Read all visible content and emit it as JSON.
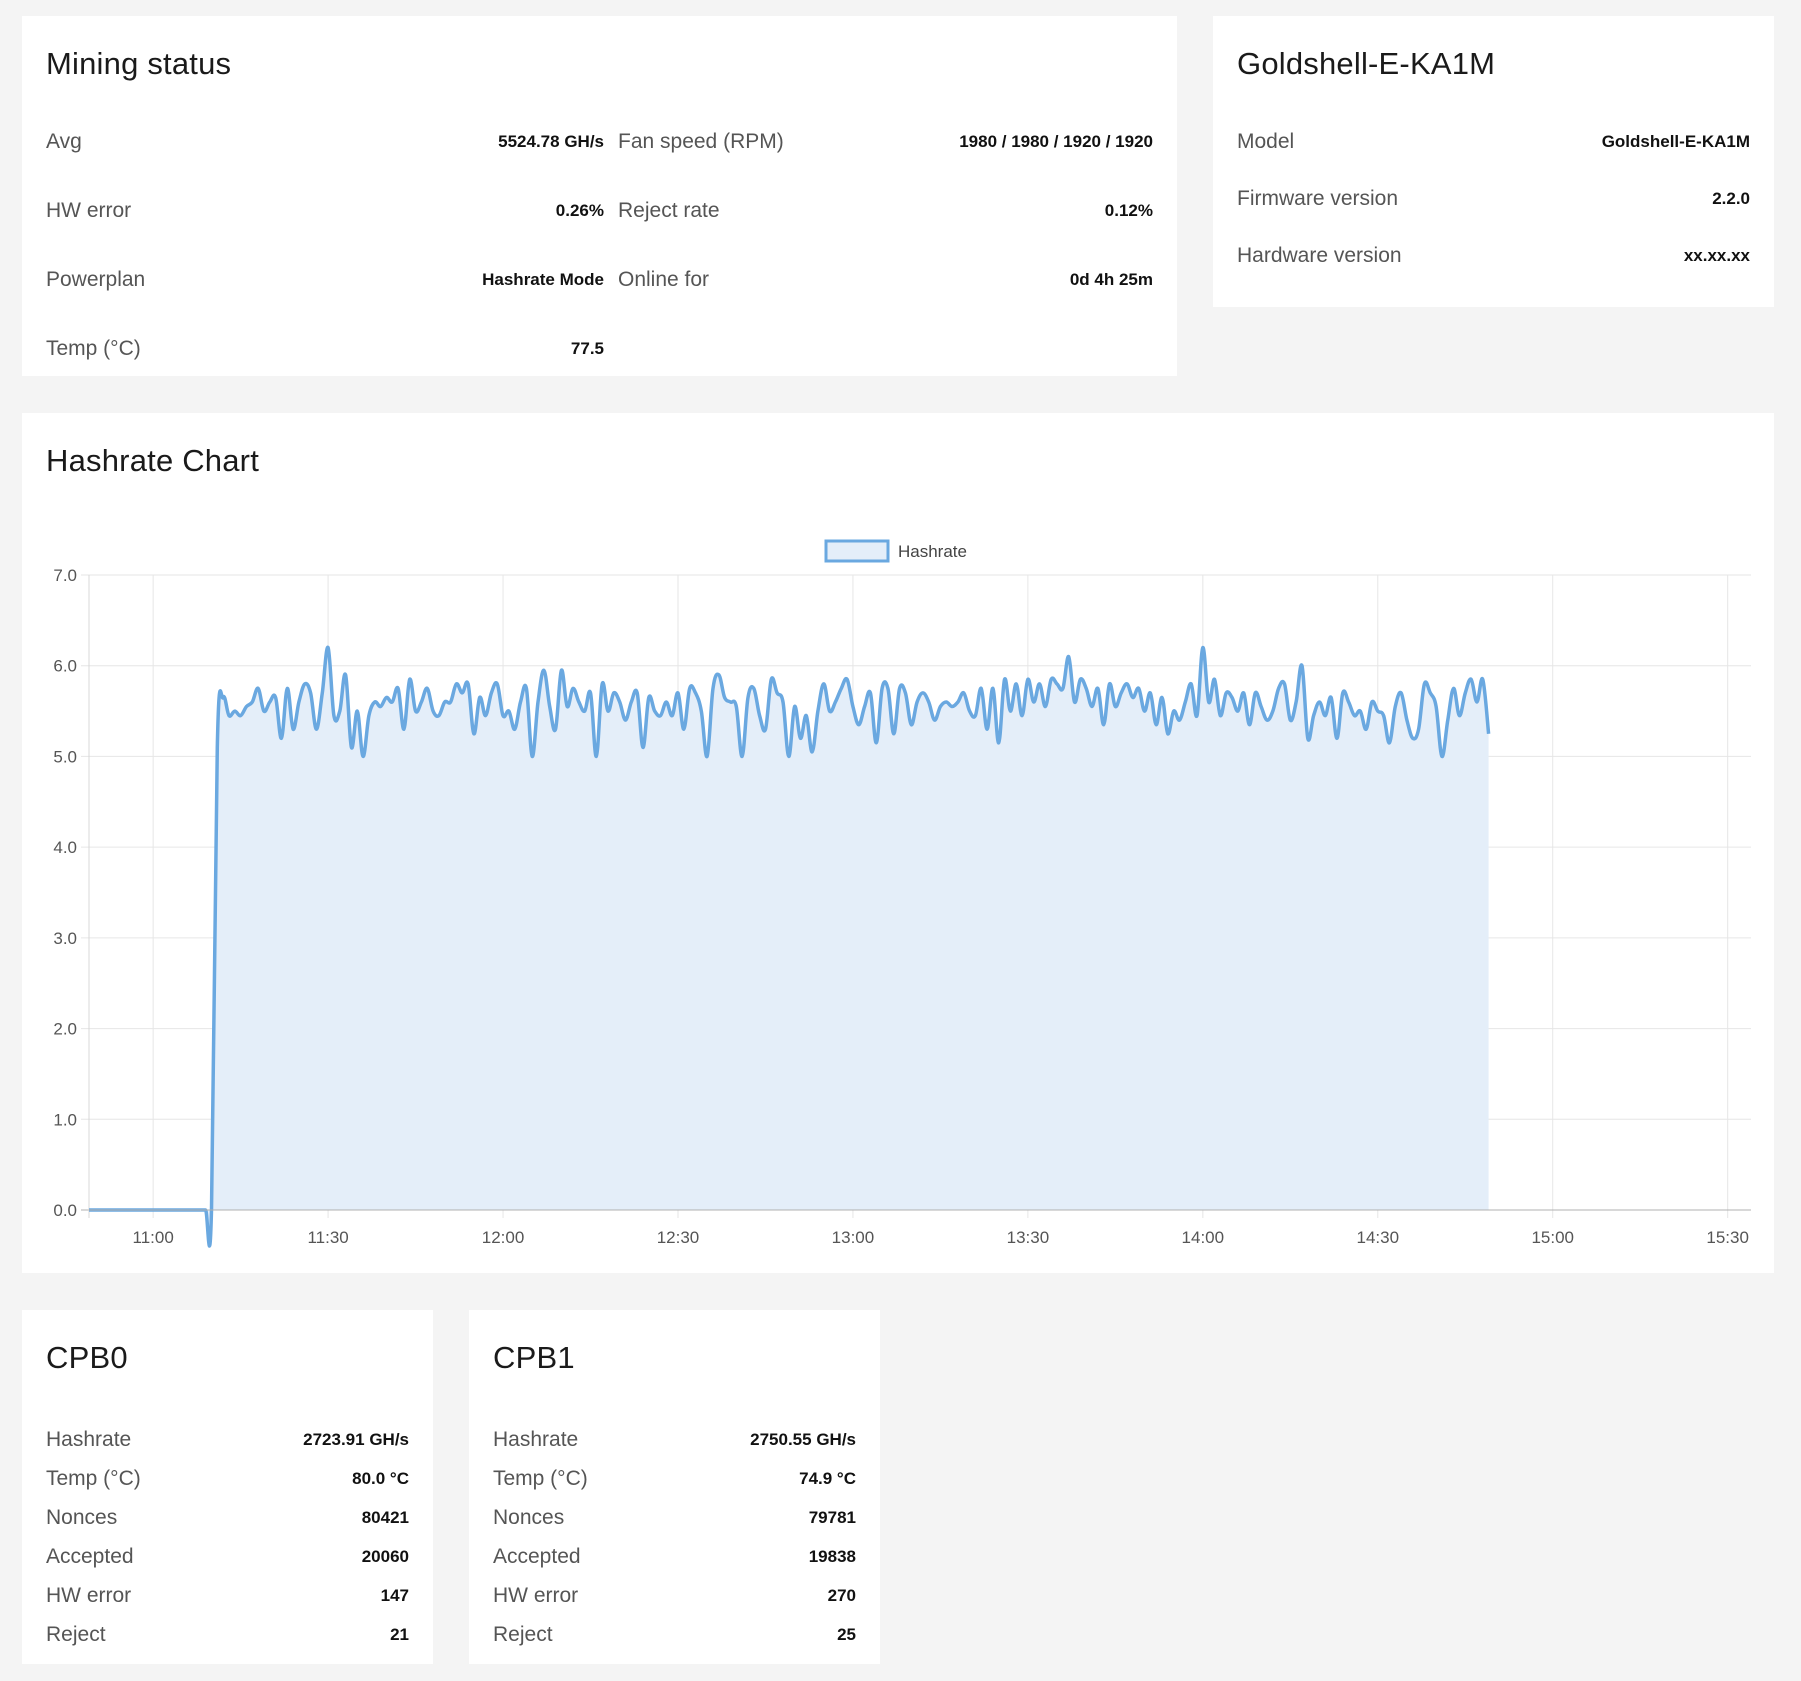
{
  "mining_status": {
    "title": "Mining status",
    "left_rows": [
      {
        "label": "Avg",
        "value": "5524.78 GH/s"
      },
      {
        "label": "HW error",
        "value": "0.26%"
      },
      {
        "label": "Powerplan",
        "value": "Hashrate Mode"
      },
      {
        "label": "Temp (°C)",
        "value": "77.5"
      }
    ],
    "right_rows": [
      {
        "label": "Fan speed (RPM)",
        "value": "1980 / 1980 / 1920 / 1920"
      },
      {
        "label": "Reject rate",
        "value": "0.12%"
      },
      {
        "label": "Online for",
        "value": "0d 4h 25m"
      }
    ]
  },
  "device": {
    "title": "Goldshell-E-KA1M",
    "rows": [
      {
        "label": "Model",
        "value": "Goldshell-E-KA1M"
      },
      {
        "label": "Firmware version",
        "value": "2.2.0"
      },
      {
        "label": "Hardware version",
        "value": "xx.xx.xx"
      }
    ]
  },
  "hashrate_chart": {
    "title": "Hashrate Chart"
  },
  "chart_data": {
    "type": "area",
    "title": "",
    "xlabel": "",
    "ylabel": "",
    "ylim": [
      0,
      7
    ],
    "y_ticks": [
      "0.0",
      "1.0",
      "2.0",
      "3.0",
      "4.0",
      "5.0",
      "6.0",
      "7.0"
    ],
    "x_ticks": [
      "11:00",
      "11:30",
      "12:00",
      "12:30",
      "13:00",
      "13:30",
      "14:00",
      "14:30",
      "15:00",
      "15:30"
    ],
    "x_tick_minutes": [
      660,
      690,
      720,
      750,
      780,
      810,
      840,
      870,
      900,
      930
    ],
    "x_range_minutes": [
      649,
      934
    ],
    "grid": true,
    "legend_position": "top-center",
    "series": [
      {
        "name": "Hashrate",
        "color": "#6aa8e0",
        "fill": "#e4eef9",
        "x_start_minutes": 649,
        "x_step_minutes": 1,
        "values": [
          0,
          0,
          0,
          0,
          0,
          0,
          0,
          0,
          0,
          0,
          0,
          0,
          0,
          0,
          0,
          0,
          0,
          0,
          0,
          0,
          0,
          0,
          5.1,
          5.65,
          5.45,
          5.5,
          5.45,
          5.55,
          5.6,
          5.75,
          5.5,
          5.6,
          5.65,
          5.2,
          5.75,
          5.3,
          5.6,
          5.8,
          5.7,
          5.3,
          5.7,
          6.2,
          5.45,
          5.5,
          5.9,
          5.1,
          5.5,
          5.0,
          5.45,
          5.6,
          5.55,
          5.65,
          5.6,
          5.75,
          5.3,
          5.85,
          5.5,
          5.6,
          5.75,
          5.5,
          5.45,
          5.6,
          5.6,
          5.8,
          5.7,
          5.8,
          5.25,
          5.65,
          5.45,
          5.7,
          5.8,
          5.45,
          5.5,
          5.3,
          5.6,
          5.75,
          5.0,
          5.6,
          5.95,
          5.55,
          5.3,
          5.95,
          5.55,
          5.75,
          5.6,
          5.5,
          5.7,
          5.0,
          5.8,
          5.5,
          5.7,
          5.6,
          5.4,
          5.6,
          5.7,
          5.1,
          5.65,
          5.5,
          5.45,
          5.6,
          5.45,
          5.7,
          5.3,
          5.75,
          5.7,
          5.5,
          5.0,
          5.75,
          5.9,
          5.65,
          5.6,
          5.55,
          5.0,
          5.65,
          5.75,
          5.45,
          5.3,
          5.85,
          5.7,
          5.6,
          5.0,
          5.55,
          5.2,
          5.45,
          5.05,
          5.5,
          5.8,
          5.5,
          5.6,
          5.75,
          5.85,
          5.55,
          5.35,
          5.55,
          5.7,
          5.15,
          5.75,
          5.75,
          5.25,
          5.75,
          5.7,
          5.35,
          5.6,
          5.7,
          5.6,
          5.4,
          5.55,
          5.6,
          5.55,
          5.6,
          5.7,
          5.5,
          5.45,
          5.75,
          5.3,
          5.75,
          5.15,
          5.85,
          5.5,
          5.8,
          5.45,
          5.85,
          5.6,
          5.8,
          5.55,
          5.85,
          5.8,
          5.75,
          6.1,
          5.6,
          5.85,
          5.75,
          5.55,
          5.75,
          5.35,
          5.8,
          5.55,
          5.7,
          5.8,
          5.65,
          5.75,
          5.5,
          5.7,
          5.35,
          5.65,
          5.25,
          5.5,
          5.4,
          5.6,
          5.8,
          5.45,
          6.2,
          5.6,
          5.85,
          5.45,
          5.7,
          5.65,
          5.5,
          5.7,
          5.35,
          5.7,
          5.55,
          5.4,
          5.5,
          5.75,
          5.8,
          5.4,
          5.6,
          6.0,
          5.2,
          5.45,
          5.6,
          5.45,
          5.65,
          5.2,
          5.7,
          5.6,
          5.45,
          5.5,
          5.3,
          5.6,
          5.5,
          5.45,
          5.15,
          5.55,
          5.7,
          5.4,
          5.2,
          5.3,
          5.8,
          5.7,
          5.55,
          5.0,
          5.4,
          5.75,
          5.45,
          5.7,
          5.85,
          5.6,
          5.85,
          5.25
        ]
      }
    ]
  },
  "cpb0": {
    "title": "CPB0",
    "rows": [
      {
        "label": "Hashrate",
        "value": "2723.91 GH/s"
      },
      {
        "label": "Temp (°C)",
        "value": "80.0 °C"
      },
      {
        "label": "Nonces",
        "value": "80421"
      },
      {
        "label": "Accepted",
        "value": "20060"
      },
      {
        "label": "HW error",
        "value": "147"
      },
      {
        "label": "Reject",
        "value": "21"
      }
    ]
  },
  "cpb1": {
    "title": "CPB1",
    "rows": [
      {
        "label": "Hashrate",
        "value": "2750.55 GH/s"
      },
      {
        "label": "Temp (°C)",
        "value": "74.9 °C"
      },
      {
        "label": "Nonces",
        "value": "79781"
      },
      {
        "label": "Accepted",
        "value": "19838"
      },
      {
        "label": "HW error",
        "value": "270"
      },
      {
        "label": "Reject",
        "value": "25"
      }
    ]
  }
}
